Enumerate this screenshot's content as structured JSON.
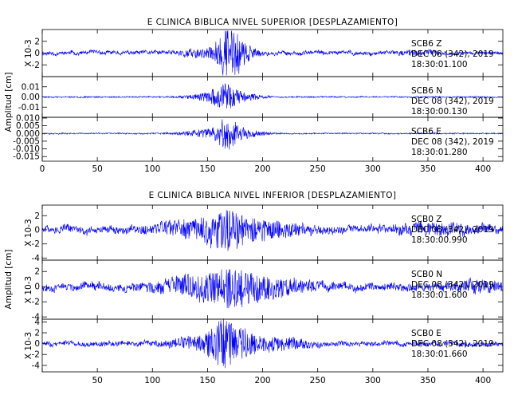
{
  "chart_data": {
    "type": "line",
    "trace_color": "#0000ff",
    "x_ticks": [
      0,
      50,
      100,
      150,
      200,
      250,
      300,
      350,
      400
    ],
    "xlim": [
      0,
      418
    ],
    "sections": [
      {
        "title": "E CLINICA BIBLICA NIVEL SUPERIOR [DESPLAZAMIENTO]",
        "ylabel": "Amplitud [cm]",
        "show_zero_tick": true,
        "panels": [
          {
            "scale_label": "X 10-3",
            "ylim": [
              -4,
              4
            ],
            "tick_values": [
              2,
              0,
              -2
            ],
            "tick_labels": [
              "2",
              "0",
              "-2"
            ],
            "channel": "SCB6   Z",
            "date": "DEC 08 (342), 2019",
            "time": "18:30:01.100",
            "signal": {
              "seed": 11,
              "noise": 0.28,
              "low_freq": 0.5,
              "bursts": [
                [
                  168,
                  10,
                  3.0
                ],
                [
                  176,
                  14,
                  2.0
                ],
                [
                  140,
                  20,
                  0.5
                ],
                [
                  340,
                  15,
                  0.3
                ]
              ],
              "max_abs": 3.8
            }
          },
          {
            "scale_label": "",
            "ylim": [
              -0.02,
              0.02
            ],
            "tick_values": [
              0.01,
              0.0,
              -0.01
            ],
            "tick_labels": [
              "0.01",
              "0.00",
              "-0.01"
            ],
            "channel": "SCB6   N",
            "date": "DEC 08 (342), 2019",
            "time": "18:30:00.130",
            "signal": {
              "seed": 23,
              "noise": 0.0006,
              "low_freq": 0.0004,
              "bursts": [
                [
                  166,
                  12,
                  0.011
                ],
                [
                  150,
                  20,
                  0.003
                ],
                [
                  185,
                  15,
                  0.003
                ]
              ],
              "max_abs": 0.018
            }
          },
          {
            "scale_label": "",
            "ylim": [
              -0.018,
              0.0105
            ],
            "tick_values": [
              0.01,
              0.005,
              0.0,
              -0.005,
              -0.01,
              -0.015
            ],
            "tick_labels": [
              "0.010",
              "0.005",
              "0.000",
              "-0.005",
              "-0.010",
              "-0.015"
            ],
            "channel": "SCB6   E",
            "date": "DEC 08 (342), 2019",
            "time": "18:30:01.280",
            "signal": {
              "seed": 37,
              "noise": 0.0004,
              "low_freq": 0.0003,
              "bursts": [
                [
                  168,
                  10,
                  0.0085
                ],
                [
                  150,
                  22,
                  0.0025
                ],
                [
                  185,
                  15,
                  0.0025
                ]
              ],
              "max_abs": 0.0165
            }
          }
        ]
      },
      {
        "title": "E CLINICA BIBLICA NIVEL INFERIOR [DESPLAZAMIENTO]",
        "ylabel": "Amplitud [cm]",
        "show_zero_tick": false,
        "panels": [
          {
            "scale_label": "X 10-3",
            "ylim": [
              -4.3,
              3.5
            ],
            "tick_values": [
              2,
              0,
              -2,
              -4
            ],
            "tick_labels": [
              "2",
              "0",
              "-2",
              "-4"
            ],
            "channel": "SCB0   Z",
            "date": "DEC 08 (342), 2019",
            "time": "18:30:00.990",
            "signal": {
              "seed": 51,
              "noise": 0.45,
              "low_freq": 0.8,
              "bursts": [
                [
                  170,
                  22,
                  2.3
                ],
                [
                  130,
                  30,
                  0.8
                ],
                [
                  210,
                  30,
                  0.8
                ],
                [
                  360,
                  40,
                  0.5
                ]
              ],
              "max_abs": 4.1
            }
          },
          {
            "scale_label": "X 10-3",
            "ylim": [
              -4.3,
              3.5
            ],
            "tick_values": [
              2,
              0,
              -2,
              -4
            ],
            "tick_labels": [
              "2",
              "0",
              "-2",
              "-4"
            ],
            "channel": "SCB0   N",
            "date": "DEC 08 (342), 2019",
            "time": "18:30:01.600",
            "signal": {
              "seed": 67,
              "noise": 0.45,
              "low_freq": 0.7,
              "bursts": [
                [
                  172,
                  25,
                  2.0
                ],
                [
                  135,
                  30,
                  0.8
                ],
                [
                  215,
                  30,
                  0.8
                ],
                [
                  395,
                  20,
                  0.5
                ]
              ],
              "max_abs": 4.1
            }
          },
          {
            "scale_label": "X 10-3",
            "ylim": [
              -5.2,
              4.5
            ],
            "tick_values": [
              4,
              2,
              0,
              -2,
              -4
            ],
            "tick_labels": [
              "4",
              "2",
              "0",
              "-2",
              "-4"
            ],
            "channel": "SCB0   E",
            "date": "DEC 08 (342), 2019",
            "time": "18:30:01.660",
            "signal": {
              "seed": 83,
              "noise": 0.4,
              "low_freq": 0.5,
              "bursts": [
                [
                  165,
                  14,
                  3.2
                ],
                [
                  180,
                  22,
                  1.8
                ],
                [
                  140,
                  25,
                  0.8
                ],
                [
                  220,
                  25,
                  0.8
                ]
              ],
              "max_abs": 5.0
            }
          }
        ]
      }
    ]
  }
}
